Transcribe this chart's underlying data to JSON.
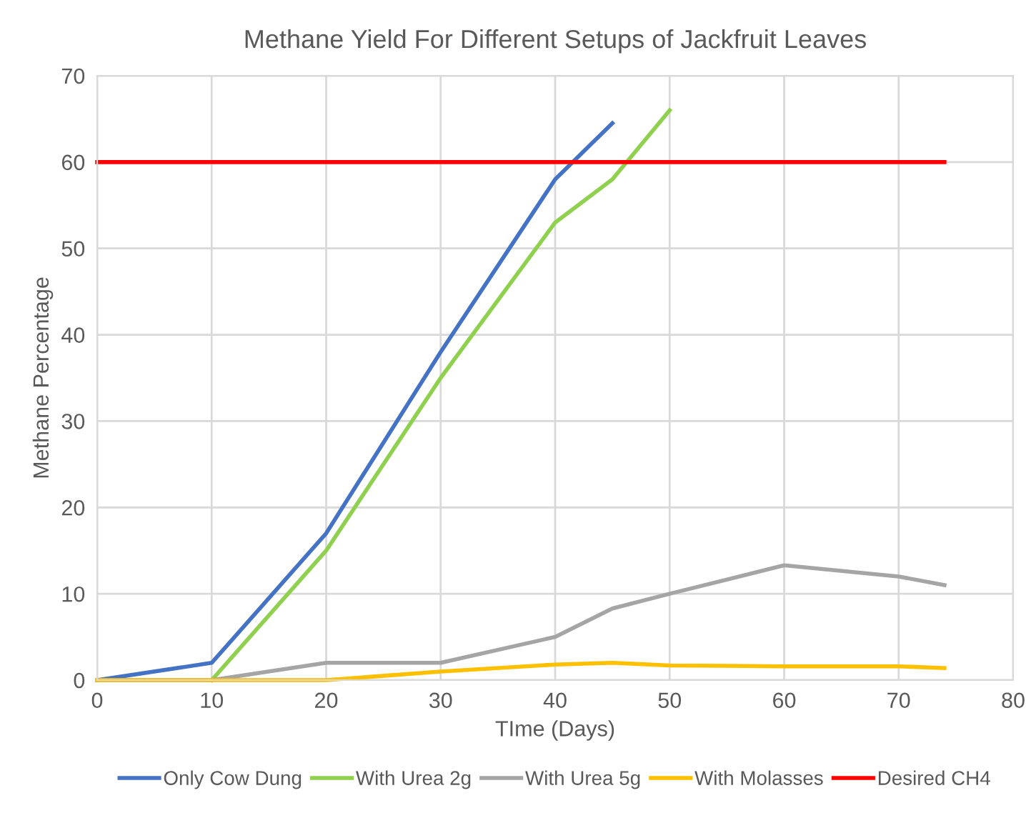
{
  "chart_data": {
    "type": "line",
    "title": "Methane Yield For Different Setups of Jackfruit Leaves",
    "xlabel": "TIme (Days)",
    "ylabel": "Methane Percentage",
    "xlim": [
      0,
      80
    ],
    "xticks": [
      0,
      10,
      20,
      30,
      40,
      50,
      60,
      70,
      80
    ],
    "ylim": [
      0,
      70
    ],
    "yticks": [
      0,
      10,
      20,
      30,
      40,
      50,
      60,
      70
    ],
    "grid": true,
    "legend": "bottom",
    "series": [
      {
        "name": "Only Cow Dung",
        "color": "#4472c4",
        "x": [
          0,
          10,
          20,
          30,
          40,
          45
        ],
        "values": [
          0,
          2,
          17,
          38,
          58,
          64.5
        ]
      },
      {
        "name": "With Urea 2g",
        "color": "#8fd14f",
        "x": [
          10,
          20,
          30,
          40,
          45,
          50
        ],
        "values": [
          0,
          15,
          35,
          53,
          58,
          66
        ]
      },
      {
        "name": "With Urea 5g",
        "color": "#a5a5a5",
        "x": [
          0,
          10,
          20,
          30,
          40,
          45,
          50,
          60,
          70,
          74
        ],
        "values": [
          0,
          0,
          2,
          2,
          5,
          8.3,
          10,
          13.3,
          12,
          11
        ]
      },
      {
        "name": "With Molasses",
        "color": "#ffc000",
        "x": [
          0,
          10,
          20,
          30,
          40,
          45,
          50,
          60,
          70,
          74
        ],
        "values": [
          0,
          0,
          0,
          1,
          1.8,
          2,
          1.7,
          1.6,
          1.6,
          1.4
        ]
      },
      {
        "name": "Desired CH4",
        "color": "#ff0000",
        "x": [
          0,
          74
        ],
        "values": [
          60,
          60
        ]
      }
    ]
  }
}
